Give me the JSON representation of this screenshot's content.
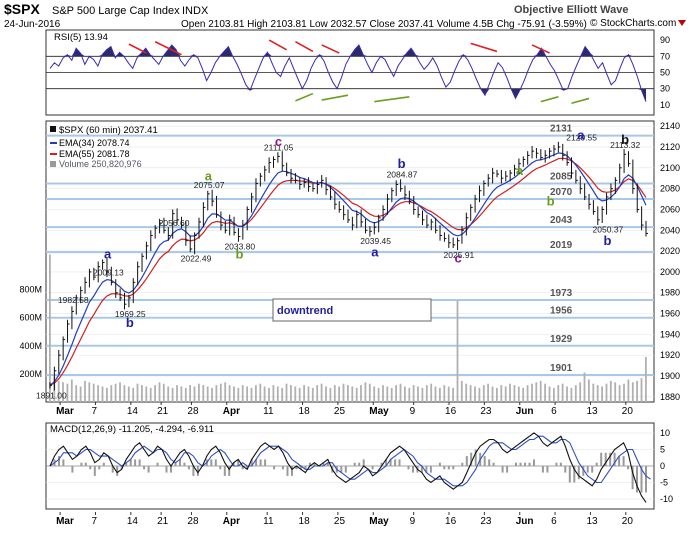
{
  "header": {
    "symbol": "$SPX",
    "name": "S&P 500 Large Cap Index",
    "exchange": "INDX",
    "watermark": "Objective Elliott Wave",
    "date": "24-Jun-2016",
    "ohlc": "Open 2103.81  High 2103.81  Low 2032.57  Close 2037.41  Volume 4.5B  Chg -75.91 (-3.59%)",
    "credit": "© StockCharts.com"
  },
  "rsi": {
    "label": "RSI(5) 13.94",
    "ticks": [
      "90",
      "70",
      "50",
      "30",
      "10"
    ],
    "tick_values": [
      90,
      70,
      50,
      30,
      10
    ],
    "ylim": [
      0,
      100
    ],
    "reference_lines": [
      70,
      50,
      30
    ],
    "values": [
      55,
      62,
      58,
      68,
      72,
      65,
      80,
      74,
      60,
      70,
      66,
      58,
      72,
      78,
      82,
      68,
      75,
      70,
      62,
      55,
      68,
      74,
      80,
      72,
      66,
      60,
      70,
      77,
      84,
      78,
      65,
      58,
      66,
      72,
      68,
      55,
      40,
      50,
      62,
      70,
      76,
      82,
      70,
      60,
      48,
      35,
      28,
      42,
      55,
      68,
      75,
      62,
      50,
      45,
      58,
      68,
      55,
      42,
      30,
      40,
      55,
      66,
      72,
      64,
      50,
      38,
      30,
      44,
      60,
      70,
      78,
      84,
      72,
      60,
      50,
      62,
      70,
      66,
      55,
      45,
      58,
      66,
      74,
      80,
      72,
      62,
      54,
      60,
      68,
      58,
      44,
      32,
      38,
      52,
      64,
      72,
      66,
      55,
      42,
      30,
      22,
      36,
      50,
      62,
      56,
      44,
      30,
      18,
      28,
      40,
      54,
      66,
      72,
      80,
      70,
      60,
      52,
      40,
      28,
      30,
      45,
      58,
      70,
      82,
      75,
      65,
      55,
      62,
      48,
      35,
      40,
      55,
      68,
      72,
      60,
      45,
      28,
      14
    ]
  },
  "price": {
    "legend_symbol": "$SPX (60 min) 2037.41",
    "ema34": "EMA(34) 2078.74",
    "ema55": "EMA(55) 2081.78",
    "volume": "Volume 250,820,976",
    "ylim": [
      1875,
      2145
    ],
    "ticks": [
      "2140",
      "2120",
      "2100",
      "2080",
      "2060",
      "2040",
      "2020",
      "2000",
      "1980",
      "1960",
      "1940",
      "1920",
      "1900",
      "1880"
    ],
    "tick_values": [
      2140,
      2120,
      2100,
      2080,
      2060,
      2040,
      2020,
      2000,
      1980,
      1960,
      1940,
      1920,
      1900,
      1880
    ],
    "volume_ticks": [
      "800M",
      "600M",
      "400M",
      "200M"
    ],
    "volume_tick_values": [
      800,
      600,
      400,
      200
    ],
    "volume_max": 1100,
    "levels": [
      {
        "value": 2131,
        "label": "2131"
      },
      {
        "value": 2085,
        "label": "2085"
      },
      {
        "value": 2070,
        "label": "2070"
      },
      {
        "value": 2043,
        "label": "2043"
      },
      {
        "value": 2019,
        "label": "2019"
      },
      {
        "value": 1973,
        "label": "1973"
      },
      {
        "value": 1956,
        "label": "1956"
      },
      {
        "value": 1929,
        "label": "1929"
      },
      {
        "value": 1901,
        "label": "1901"
      }
    ],
    "price_labels": [
      {
        "text": "2111.05",
        "value": 2111.05,
        "bar": 52
      },
      {
        "text": "2120.55",
        "value": 2120.55,
        "bar": 121
      },
      {
        "text": "2113.32",
        "value": 2113.32,
        "bar": 131
      },
      {
        "text": "2084.87",
        "value": 2084.87,
        "bar": 80
      },
      {
        "text": "2075.07",
        "value": 2075.07,
        "bar": 36
      },
      {
        "text": "2056.60",
        "value": 2056.6,
        "bar": 28
      },
      {
        "text": "2039.45",
        "value": 2039.45,
        "bar": 74
      },
      {
        "text": "2050.37",
        "value": 2050.37,
        "bar": 127
      },
      {
        "text": "2033.80",
        "value": 2033.8,
        "bar": 43
      },
      {
        "text": "2022.49",
        "value": 2022.49,
        "bar": 33
      },
      {
        "text": "2025.91",
        "value": 2025.91,
        "bar": 93
      },
      {
        "text": "2009.13",
        "value": 2009.13,
        "bar": 13
      },
      {
        "text": "1982.58",
        "value": 1982.58,
        "bar": 5
      },
      {
        "text": "1969.25",
        "value": 1969.25,
        "bar": 18
      },
      {
        "text": "1891.00",
        "value": 1891.0,
        "bar": 0
      }
    ],
    "wave_labels": [
      {
        "text": "a",
        "color": "#1f1f9e",
        "value": 2013,
        "bar": 13
      },
      {
        "text": "b",
        "color": "#1f1f9e",
        "value": 1947,
        "bar": 18
      },
      {
        "text": "a",
        "color": "#6b9e1f",
        "value": 2088,
        "bar": 36
      },
      {
        "text": "b",
        "color": "#6b9e1f",
        "value": 2013,
        "bar": 43
      },
      {
        "text": "c",
        "color": "#8b1a8b",
        "value": 2121,
        "bar": 52
      },
      {
        "text": "b",
        "color": "#1f1f9e",
        "value": 2100,
        "bar": 80
      },
      {
        "text": "a",
        "color": "#1f1f9e",
        "value": 2015,
        "bar": 74
      },
      {
        "text": "c",
        "color": "#8b1a8b",
        "value": 2009,
        "bar": 93
      },
      {
        "text": "a",
        "color": "#6b9e1f",
        "value": 2093,
        "bar": 107
      },
      {
        "text": "b",
        "color": "#6b9e1f",
        "value": 2064,
        "bar": 114
      },
      {
        "text": "a",
        "color": "#1f1f9e",
        "value": 2127,
        "bar": 121
      },
      {
        "text": "b",
        "color": "#1f1f9e",
        "value": 2026,
        "bar": 127
      },
      {
        "text": "b",
        "color": "#111111",
        "value": 2123,
        "bar": 131
      }
    ],
    "annotation": "downtrend",
    "close": [
      1891,
      1905,
      1920,
      1935,
      1950,
      1962,
      1975,
      1982,
      1990,
      2000,
      1995,
      2005,
      2009,
      2000,
      1990,
      1980,
      1975,
      1969,
      1975,
      1990,
      2005,
      2015,
      2025,
      2035,
      2042,
      2047,
      2040,
      2035,
      2056,
      2050,
      2045,
      2030,
      2022,
      2035,
      2048,
      2062,
      2075,
      2068,
      2055,
      2045,
      2040,
      2050,
      2038,
      2034,
      2045,
      2060,
      2072,
      2085,
      2092,
      2098,
      2105,
      2108,
      2111,
      2102,
      2095,
      2090,
      2088,
      2084,
      2086,
      2082,
      2080,
      2084,
      2088,
      2079,
      2072,
      2065,
      2060,
      2055,
      2050,
      2045,
      2055,
      2048,
      2040,
      2039,
      2043,
      2052,
      2060,
      2070,
      2078,
      2084,
      2080,
      2074,
      2068,
      2060,
      2055,
      2050,
      2045,
      2048,
      2040,
      2035,
      2032,
      2028,
      2026,
      2030,
      2040,
      2052,
      2062,
      2070,
      2078,
      2085,
      2090,
      2095,
      2094,
      2090,
      2092,
      2095,
      2099,
      2104,
      2108,
      2112,
      2116,
      2114,
      2110,
      2112,
      2116,
      2118,
      2120,
      2112,
      2105,
      2095,
      2088,
      2080,
      2072,
      2065,
      2058,
      2050,
      2060,
      2072,
      2080,
      2088,
      2100,
      2113,
      2104,
      2080,
      2060,
      2045,
      2037
    ],
    "volume_values": [
      1050,
      180,
      150,
      140,
      130,
      160,
      120,
      110,
      150,
      140,
      130,
      120,
      110,
      100,
      120,
      130,
      140,
      120,
      110,
      100,
      130,
      120,
      110,
      100,
      120,
      140,
      130,
      110,
      100,
      120,
      110,
      100,
      120,
      110,
      130,
      120,
      110,
      100,
      120,
      130,
      140,
      120,
      110,
      100,
      120,
      110,
      100,
      120,
      130,
      110,
      100,
      120,
      110,
      100,
      130,
      120,
      110,
      100,
      120,
      110,
      100,
      120,
      130,
      110,
      100,
      120,
      110,
      130,
      120,
      110,
      100,
      120,
      140,
      130,
      110,
      100,
      120,
      110,
      100,
      120,
      130,
      110,
      100,
      120,
      110,
      100,
      120,
      130,
      110,
      100,
      120,
      110,
      100,
      720,
      150,
      130,
      120,
      110,
      100,
      120,
      130,
      110,
      100,
      120,
      110,
      130,
      120,
      110,
      100,
      120,
      130,
      140,
      150,
      130,
      110,
      100,
      120,
      130,
      110,
      100,
      120,
      140,
      210,
      160,
      130,
      120,
      110,
      130,
      150,
      140,
      120,
      130,
      160,
      140,
      150,
      170,
      320
    ]
  },
  "macd": {
    "label": "MACD(12,26,9) -11.205, -4.294, -6.911",
    "ticks": [
      "10",
      "5",
      "0",
      "-5",
      "-10"
    ],
    "tick_values": [
      10,
      5,
      0,
      -5,
      -10
    ],
    "ylim": [
      -13,
      13
    ],
    "macd": [
      0,
      3,
      5,
      6,
      4,
      2,
      3,
      5,
      6,
      4,
      1,
      2,
      4,
      3,
      0,
      -2,
      -1,
      2,
      4,
      6,
      7,
      5,
      3,
      4,
      6,
      5,
      2,
      0,
      2,
      4,
      5,
      3,
      0,
      -2,
      0,
      3,
      5,
      6,
      4,
      1,
      -1,
      1,
      2,
      0,
      -1,
      2,
      4,
      6,
      7,
      6,
      5,
      6,
      4,
      1,
      -1,
      0,
      -1,
      -2,
      0,
      1,
      0,
      1,
      2,
      -1,
      -3,
      -4,
      -5,
      -4,
      -3,
      -2,
      0,
      -1,
      -3,
      -2,
      0,
      2,
      4,
      5,
      6,
      5,
      3,
      1,
      -1,
      -2,
      -4,
      -5,
      -4,
      -3,
      -5,
      -6,
      -7,
      -6,
      -5,
      -2,
      1,
      4,
      6,
      7,
      8,
      8,
      7,
      5,
      4,
      5,
      6,
      7,
      8,
      9,
      10,
      9,
      7,
      6,
      7,
      8,
      9,
      6,
      2,
      -1,
      -3,
      -4,
      -5,
      -6,
      -4,
      -1,
      1,
      3,
      5,
      6,
      7,
      4,
      -2,
      -6,
      -9,
      -11
    ],
    "signal": [
      0,
      1,
      2,
      4,
      4,
      4,
      3,
      4,
      5,
      5,
      4,
      3,
      3,
      3,
      2,
      1,
      0,
      1,
      2,
      4,
      5,
      6,
      5,
      4,
      5,
      5,
      4,
      2,
      1,
      2,
      4,
      4,
      3,
      1,
      0,
      1,
      3,
      4,
      5,
      4,
      2,
      0,
      0,
      1,
      0,
      0,
      2,
      4,
      5,
      6,
      6,
      6,
      5,
      4,
      2,
      1,
      0,
      -1,
      -1,
      0,
      0,
      0,
      1,
      1,
      -1,
      -2,
      -3,
      -4,
      -4,
      -3,
      -2,
      -1,
      -2,
      -2,
      -1,
      0,
      2,
      3,
      4,
      5,
      4,
      3,
      1,
      0,
      -2,
      -3,
      -4,
      -4,
      -4,
      -5,
      -6,
      -6,
      -6,
      -5,
      -3,
      -1,
      2,
      4,
      6,
      7,
      7,
      7,
      6,
      5,
      5,
      6,
      7,
      8,
      8,
      9,
      9,
      8,
      7,
      7,
      8,
      8,
      7,
      4,
      1,
      -1,
      -3,
      -4,
      -5,
      -5,
      -3,
      -1,
      1,
      3,
      4,
      5,
      5,
      2,
      -1,
      -3,
      -4
    ]
  },
  "x_axis": {
    "labels": [
      "Mar",
      "7",
      "14",
      "21",
      "28",
      "Apr",
      "11",
      "18",
      "25",
      "May",
      "9",
      "16",
      "23",
      "Jun",
      "6",
      "13",
      "20"
    ],
    "label_bars": [
      2,
      9,
      16,
      22,
      28,
      35,
      43,
      50,
      57,
      64,
      72,
      79,
      86,
      93,
      100,
      107,
      114
    ],
    "bold": [
      true,
      false,
      false,
      false,
      false,
      true,
      false,
      false,
      false,
      true,
      false,
      false,
      false,
      true,
      false,
      false,
      false
    ]
  },
  "chart_data": {
    "type": "line",
    "title": "$SPX S&P 500 Large Cap Index INDX",
    "xlabel": "",
    "ylabel": "",
    "x_range": [
      "Mar",
      "Jun 24"
    ],
    "ylim": [
      1875,
      2145
    ],
    "series": [
      {
        "name": "$SPX (60 min) 2037.41",
        "color": "#111111"
      },
      {
        "name": "EMA(34) 2078.74",
        "color": "#1f3fbf"
      },
      {
        "name": "EMA(55) 2081.78",
        "color": "#d02020"
      }
    ],
    "key_points": {
      "open": 2103.81,
      "high": 2103.81,
      "low": 2032.57,
      "close": 2037.41,
      "change": -75.91,
      "change_pct": -3.59
    },
    "rsi_last": 13.94,
    "macd_last": [
      -11.205,
      -4.294,
      -6.911
    ],
    "grid": true
  },
  "colors": {
    "panel_bg": "#ffffff",
    "level_line": "#a8c8e8",
    "rsi_line": "#3a2bb0",
    "rsi_fill": "#2b2b6b",
    "ema34": "#1f3fbf",
    "ema55": "#d02020",
    "price": "#111111",
    "volume": "#b0b0b0",
    "macd_hist": "#999999",
    "macd_line": "#111111",
    "macd_signal": "#3050c0",
    "red_trend": "#e02020",
    "green_trend": "#6b9e1f"
  }
}
